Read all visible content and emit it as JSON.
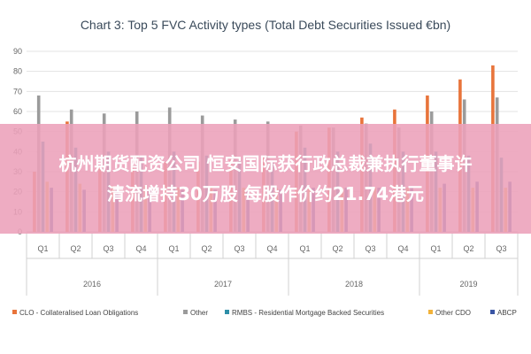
{
  "chart_data": {
    "type": "bar",
    "title": "Chart 3: Top 5 FVC Activity types (Total Debt Securities Issued €bn)",
    "ylim": [
      0,
      90
    ],
    "yticks": [
      "0",
      "10",
      "20",
      "30",
      "40",
      "50",
      "60",
      "70",
      "80",
      "90"
    ],
    "grid": true,
    "legend_position": "bottom",
    "categories": [
      "Q1",
      "Q2",
      "Q3",
      "Q4",
      "Q1",
      "Q2",
      "Q3",
      "Q4",
      "Q1",
      "Q2",
      "Q3",
      "Q4",
      "Q1",
      "Q2",
      "Q3"
    ],
    "year_groups": [
      {
        "label": "2016",
        "count": 4
      },
      {
        "label": "2017",
        "count": 4
      },
      {
        "label": "2018",
        "count": 4
      },
      {
        "label": "2019",
        "count": 3
      }
    ],
    "series": [
      {
        "name": "CLO - Collateralised Loan Obligations",
        "color": "#e8743b",
        "values": [
          30,
          55,
          33,
          33,
          35,
          35,
          36,
          38,
          50,
          52,
          57,
          61,
          68,
          76,
          83
        ]
      },
      {
        "name": "Other",
        "color": "#9b9b9b",
        "values": [
          68,
          61,
          59,
          60,
          62,
          58,
          56,
          55,
          53,
          52,
          54,
          52,
          60,
          66,
          67
        ]
      },
      {
        "name": "RMBS - Residential Mortgage Backed Securities",
        "color": "#2e8fa8",
        "values": [
          45,
          42,
          40,
          38,
          40,
          38,
          36,
          35,
          42,
          40,
          44,
          40,
          40,
          38,
          37
        ]
      },
      {
        "name": "Other CDO",
        "color": "#f2b23a",
        "values": [
          25,
          24,
          23,
          23,
          22,
          22,
          22,
          22,
          22,
          22,
          22,
          22,
          22,
          22,
          22
        ]
      },
      {
        "name": "ABCP",
        "color": "#3a55a4",
        "values": [
          22,
          21,
          21,
          21,
          21,
          21,
          21,
          21,
          22,
          22,
          22,
          22,
          24,
          25,
          25
        ]
      }
    ]
  },
  "banner": {
    "line1": "杭州期货配资公司 恒安国际获行政总裁兼执行董事许",
    "line2": "清流增持30万股 每股作价约21.74港元"
  }
}
